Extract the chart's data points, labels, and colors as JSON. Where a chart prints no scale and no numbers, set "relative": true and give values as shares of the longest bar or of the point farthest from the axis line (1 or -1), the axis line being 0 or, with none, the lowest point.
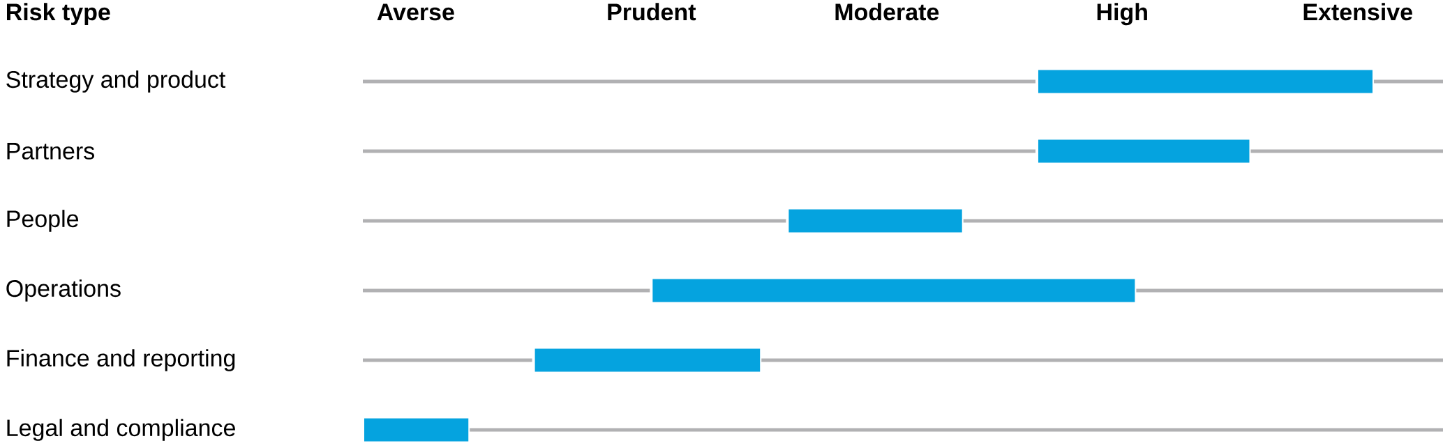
{
  "chart_data": {
    "type": "bar",
    "orientation": "horizontal",
    "stacked": true,
    "relative": true,
    "ylabel": "Risk type",
    "categories": [
      "Strategy and product",
      "Partners",
      "People",
      "Operations",
      "Finance and reporting",
      "Legal and compliance"
    ],
    "series": [
      {
        "color": "#b1b1b3",
        "values": [
          0.624,
          0.624,
          0.393,
          0.267,
          0.158,
          0
        ]
      },
      {
        "color": "#05a3df",
        "values": [
          0.312,
          0.198,
          0.163,
          0.449,
          0.211,
          0.099
        ]
      },
      {
        "color": "#b1b1b3",
        "values": [
          0.064,
          0.178,
          0.444,
          0.284,
          0.631,
          0.901
        ]
      }
    ],
    "annotations": [
      "Averse",
      "Prudent",
      "Moderate",
      "High",
      "Extensive"
    ]
  }
}
